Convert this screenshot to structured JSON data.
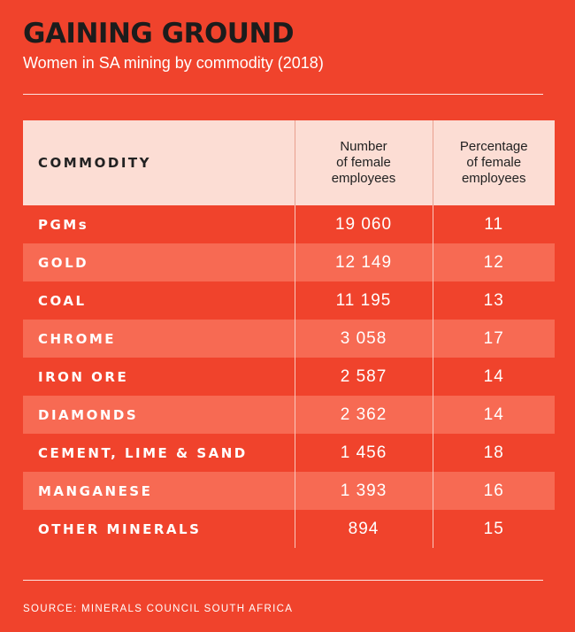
{
  "chart_data": {
    "type": "table",
    "title": "GAINING GROUND",
    "subtitle": "Women in SA mining by commodity (2018)",
    "columns": [
      "COMMODITY",
      "Number of female employees",
      "Percentage of female employees"
    ],
    "header_lines": {
      "commodity": "COMMODITY",
      "number": [
        "Number",
        "of female",
        "employees"
      ],
      "percentage": [
        "Percentage",
        "of female",
        "employees"
      ]
    },
    "rows": [
      {
        "commodity": "PGMs",
        "number": "19 060",
        "percentage": "11"
      },
      {
        "commodity": "GOLD",
        "number": "12 149",
        "percentage": "12"
      },
      {
        "commodity": "COAL",
        "number": "11 195",
        "percentage": "13"
      },
      {
        "commodity": "CHROME",
        "number": "3 058",
        "percentage": "17"
      },
      {
        "commodity": "IRON ORE",
        "number": "2 587",
        "percentage": "14"
      },
      {
        "commodity": "DIAMONDS",
        "number": "2 362",
        "percentage": "14"
      },
      {
        "commodity": "CEMENT, LIME & SAND",
        "number": "1 456",
        "percentage": "18"
      },
      {
        "commodity": "MANGANESE",
        "number": "1 393",
        "percentage": "16"
      },
      {
        "commodity": "OTHER MINERALS",
        "number": "894",
        "percentage": "15"
      }
    ],
    "source": "SOURCE: MINERALS COUNCIL SOUTH AFRICA"
  },
  "colors": {
    "background": "#f0432c",
    "alt_row": "#f76a53",
    "header_bg": "#fcddd4",
    "title": "#1c1c1c"
  }
}
